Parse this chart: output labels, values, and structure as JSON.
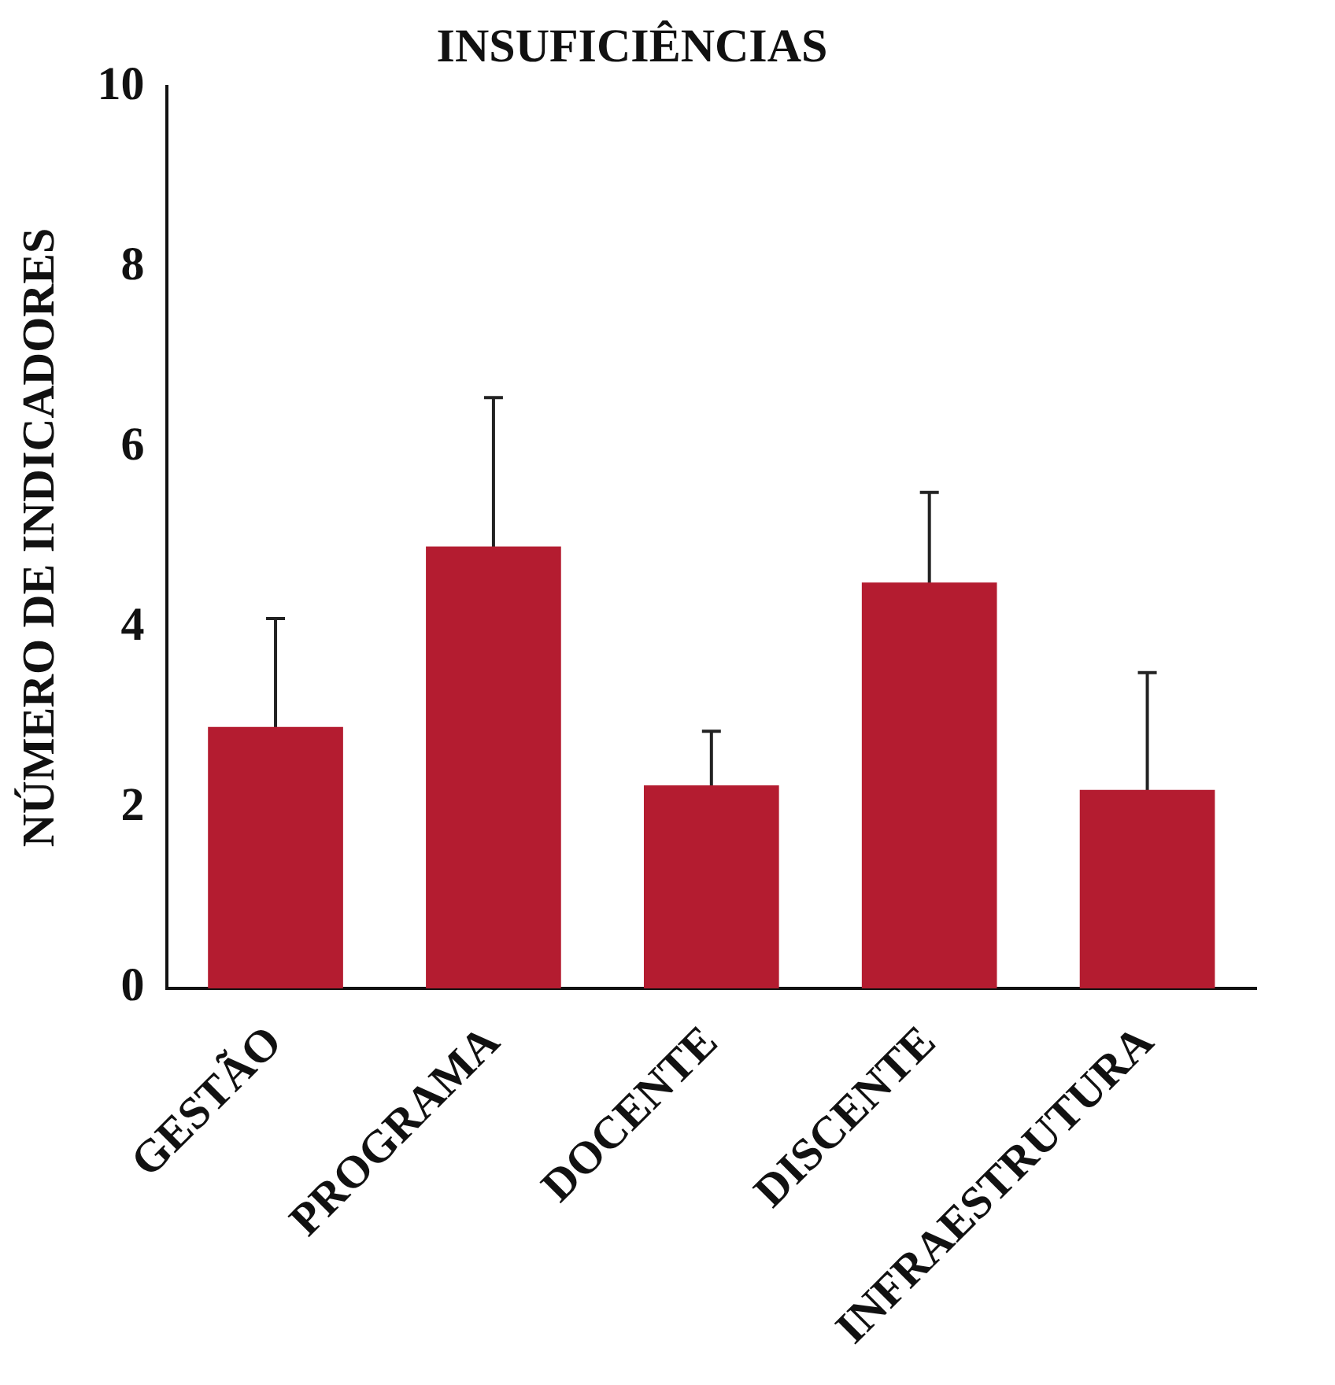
{
  "chart_data": {
    "type": "bar",
    "title": "INSUFICIÊNCIAS",
    "ylabel": "NÚMERO DE INDICADORES",
    "categories": [
      "GESTÃO",
      "PROGRAMA",
      "DOCENTE",
      "DISCENTE",
      "INFRAESTRUTURA"
    ],
    "values": [
      2.9,
      4.9,
      2.25,
      4.5,
      2.2
    ],
    "errors": [
      1.2,
      1.65,
      0.6,
      1.0,
      1.3
    ],
    "color": "#b41c30",
    "ylim": [
      0,
      10
    ],
    "yticks": [
      0,
      2,
      4,
      6,
      8,
      10
    ],
    "grid": false,
    "legend": false
  }
}
